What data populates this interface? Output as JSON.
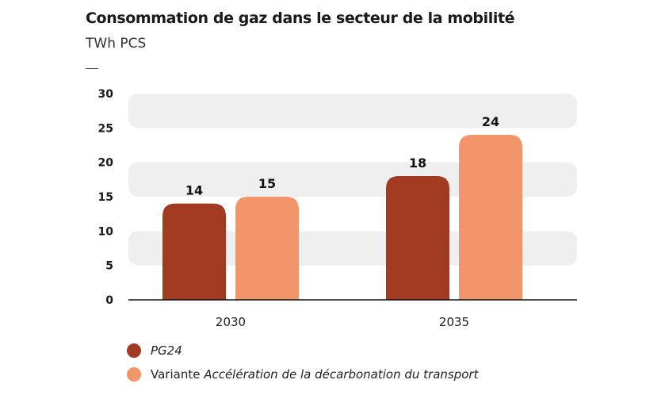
{
  "chart_data": {
    "type": "bar",
    "title": "Consommation de gaz dans le secteur de la mobilité",
    "subtitle": "TWh PCS",
    "categories": [
      "2030",
      "2035"
    ],
    "ylim": [
      0,
      30
    ],
    "yticks": [
      0,
      5,
      10,
      15,
      20,
      25,
      30
    ],
    "grid": "alternating bands",
    "legend_position": "bottom-left",
    "series": [
      {
        "name": "PG24",
        "values": [
          14,
          18
        ],
        "color": "#a33a22"
      },
      {
        "name": "Variante Accélération de la décarbonation du transport",
        "values": [
          15,
          24
        ],
        "color": "#f2956a"
      }
    ]
  },
  "legend": {
    "item1": "PG24",
    "item2_prefix": "Variante ",
    "item2_italic": "Accélération de la décarbonation du transport"
  }
}
